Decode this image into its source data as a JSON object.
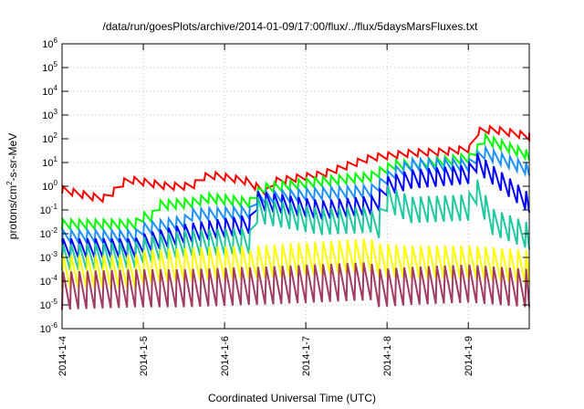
{
  "chart_data": {
    "type": "line",
    "title": "/data/run/goesPlots/archive/2014-01-09/17:00/flux/../flux/5daysMarsFluxes.txt",
    "xlabel": "Coordinated Universal Time (UTC)",
    "ylabel": "protons/cm²-s-sr-MeV",
    "ylabel_parts": {
      "pre": "protons/cm",
      "sup": "2",
      "post": "-s-sr-MeV"
    },
    "yscale": "log",
    "ylim": [
      1e-06,
      1000000.0
    ],
    "xlim": [
      0,
      5.75
    ],
    "x_unit": "days since 2014-1-4",
    "grid": true,
    "y_ticks": [
      {
        "exp": -6,
        "label": "10",
        "sup": "-6"
      },
      {
        "exp": -5,
        "label": "10",
        "sup": "-5"
      },
      {
        "exp": -4,
        "label": "10",
        "sup": "-4"
      },
      {
        "exp": -3,
        "label": "10",
        "sup": "-3"
      },
      {
        "exp": -2,
        "label": "10",
        "sup": "-2"
      },
      {
        "exp": -1,
        "label": "10",
        "sup": "-1"
      },
      {
        "exp": 0,
        "label": "10",
        "sup": "0"
      },
      {
        "exp": 1,
        "label": "10",
        "sup": "1"
      },
      {
        "exp": 2,
        "label": "10",
        "sup": "2"
      },
      {
        "exp": 3,
        "label": "10",
        "sup": "3"
      },
      {
        "exp": 4,
        "label": "10",
        "sup": "4"
      },
      {
        "exp": 5,
        "label": "10",
        "sup": "5"
      },
      {
        "exp": 6,
        "label": "10",
        "sup": "6"
      }
    ],
    "x_ticks": [
      {
        "x": 0,
        "label": "2014-1-4"
      },
      {
        "x": 1,
        "label": "2014-1-5"
      },
      {
        "x": 2,
        "label": "2014-1-6"
      },
      {
        "x": 3,
        "label": "2014-1-7"
      },
      {
        "x": 4,
        "label": "2014-1-8"
      },
      {
        "x": 5,
        "label": "2014-1-9"
      }
    ],
    "series": [
      {
        "color": "#ff0000",
        "saw_spacing": 0.125,
        "saw_amp": 0.15,
        "anchors": [
          [
            0,
            -0.15
          ],
          [
            0.45,
            -0.5
          ],
          [
            0.55,
            -0.5
          ],
          [
            0.8,
            0.3
          ],
          [
            1.3,
            0.0
          ],
          [
            1.6,
            0.0
          ],
          [
            1.75,
            0.4
          ],
          [
            1.9,
            0.45
          ],
          [
            2.3,
            0.2
          ],
          [
            2.35,
            0.05
          ],
          [
            2.55,
            -0.3
          ],
          [
            2.6,
            0.2
          ],
          [
            3.2,
            0.5
          ],
          [
            3.8,
            1.2
          ],
          [
            4.3,
            1.4
          ],
          [
            4.7,
            1.45
          ],
          [
            5.05,
            1.6
          ],
          [
            5.1,
            2.3
          ],
          [
            5.3,
            2.4
          ],
          [
            5.75,
            2.1
          ]
        ]
      },
      {
        "color": "#00ff00",
        "saw_spacing": 0.1,
        "saw_amp": 0.2,
        "anchors": [
          [
            0,
            -1.6
          ],
          [
            0.9,
            -1.6
          ],
          [
            0.95,
            -1.4
          ],
          [
            1.0,
            -1.3
          ],
          [
            1.1,
            -1.3
          ],
          [
            1.2,
            -0.8
          ],
          [
            1.6,
            -0.7
          ],
          [
            1.8,
            -0.5
          ],
          [
            2.35,
            -0.7
          ],
          [
            2.4,
            -0.3
          ],
          [
            2.45,
            -0.1
          ],
          [
            3.2,
            0.2
          ],
          [
            3.8,
            0.4
          ],
          [
            3.85,
            0.5
          ],
          [
            4.1,
            0.9
          ],
          [
            4.3,
            0.9
          ],
          [
            5.05,
            1.2
          ],
          [
            5.1,
            1.5
          ],
          [
            5.2,
            2.0
          ],
          [
            5.75,
            1.3
          ]
        ]
      },
      {
        "color": "#1e90ff",
        "saw_spacing": 0.1,
        "saw_amp": 0.25,
        "anchors": [
          [
            0,
            -2.1
          ],
          [
            0.9,
            -2.1
          ],
          [
            1.0,
            -1.8
          ],
          [
            1.5,
            -1.5
          ],
          [
            1.6,
            -1.2
          ],
          [
            2.3,
            -1.1
          ],
          [
            2.35,
            -1.2
          ],
          [
            2.4,
            -0.5
          ],
          [
            3.2,
            -0.3
          ],
          [
            3.8,
            -0.2
          ],
          [
            3.85,
            -0.1
          ],
          [
            4.05,
            0.5
          ],
          [
            4.3,
            0.9
          ],
          [
            4.45,
            0.9
          ],
          [
            5.05,
            0.9
          ],
          [
            5.1,
            1.2
          ],
          [
            5.2,
            1.4
          ],
          [
            5.75,
            0.7
          ]
        ]
      },
      {
        "color": "#0000ff",
        "saw_spacing": 0.1,
        "saw_amp": 0.4,
        "anchors": [
          [
            0,
            -2.6
          ],
          [
            0.9,
            -2.6
          ],
          [
            1.0,
            -2.4
          ],
          [
            1.5,
            -2.0
          ],
          [
            2.3,
            -1.6
          ],
          [
            2.35,
            -1.8
          ],
          [
            2.4,
            -0.6
          ],
          [
            3.2,
            -1.0
          ],
          [
            3.8,
            -0.8
          ],
          [
            3.85,
            -0.9
          ],
          [
            4.0,
            0.0
          ],
          [
            4.3,
            0.3
          ],
          [
            5.0,
            0.5
          ],
          [
            5.05,
            0.8
          ],
          [
            5.1,
            1.0
          ],
          [
            5.75,
            -0.7
          ]
        ]
      },
      {
        "color": "#20c8a0",
        "saw_spacing": 0.1,
        "saw_amp": 0.55,
        "anchors": [
          [
            0,
            -3.0
          ],
          [
            0.9,
            -2.9
          ],
          [
            1.0,
            -2.7
          ],
          [
            1.5,
            -2.4
          ],
          [
            2.3,
            -2.3
          ],
          [
            2.35,
            -2.8
          ],
          [
            2.4,
            -1.0
          ],
          [
            3.2,
            -1.5
          ],
          [
            3.8,
            -1.4
          ],
          [
            3.85,
            -2.2
          ],
          [
            4.0,
            -0.5
          ],
          [
            4.3,
            -1.0
          ],
          [
            5.0,
            -0.9
          ],
          [
            5.1,
            -0.2
          ],
          [
            5.3,
            -1.5
          ],
          [
            5.75,
            -2.1
          ]
        ]
      },
      {
        "color": "#ffff00",
        "saw_spacing": 0.1,
        "saw_amp": 0.7,
        "anchors": [
          [
            0,
            -3.6
          ],
          [
            0.9,
            -3.6
          ],
          [
            1.0,
            -3.4
          ],
          [
            1.5,
            -3.3
          ],
          [
            2.3,
            -3.2
          ],
          [
            2.35,
            -4.0
          ],
          [
            2.4,
            -3.2
          ],
          [
            3.8,
            -2.9
          ],
          [
            3.85,
            -3.1
          ],
          [
            4.3,
            -3.2
          ],
          [
            5.0,
            -3.2
          ],
          [
            5.75,
            -3.4
          ]
        ]
      },
      {
        "color": "#a03c64",
        "saw_spacing": 0.1,
        "saw_amp": 0.8,
        "anchors": [
          [
            0,
            -4.4
          ],
          [
            0.9,
            -4.3
          ],
          [
            1.5,
            -4.3
          ],
          [
            2.3,
            -4.2
          ],
          [
            2.35,
            -4.3
          ],
          [
            2.4,
            -4.2
          ],
          [
            3.8,
            -4.0
          ],
          [
            3.85,
            -4.3
          ],
          [
            4.3,
            -4.2
          ],
          [
            5.0,
            -4.1
          ],
          [
            5.75,
            -4.3
          ]
        ]
      }
    ]
  }
}
